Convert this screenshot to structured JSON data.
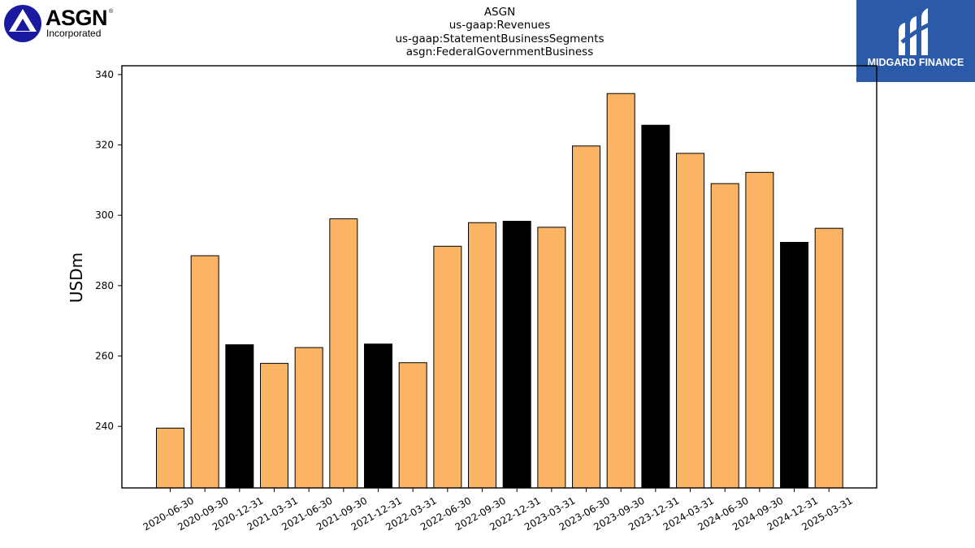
{
  "header": {
    "title_lines": [
      "ASGN",
      "us-gaap:Revenues",
      "us-gaap:StatementBusinessSegments",
      "asgn:FederalGovernmentBusiness"
    ]
  },
  "logos": {
    "left": {
      "name": "ASGN",
      "sub": "Incorporated",
      "mark": "®",
      "color": "#1a1aa0"
    },
    "right": {
      "name": "MIDGARD FINANCE",
      "bg": "#2a5aa8"
    }
  },
  "chart_data": {
    "type": "bar",
    "ylabel": "USDm",
    "xlabel": "",
    "ylim": [
      222.5,
      342.5
    ],
    "yticks": [
      240,
      260,
      280,
      300,
      320,
      340
    ],
    "grid": false,
    "categories": [
      "2020-06-30",
      "2020-09-30",
      "2020-12-31",
      "2021-03-31",
      "2021-06-30",
      "2021-09-30",
      "2021-12-31",
      "2022-03-31",
      "2022-06-30",
      "2022-09-30",
      "2022-12-31",
      "2023-03-31",
      "2023-06-30",
      "2023-09-30",
      "2023-12-31",
      "2024-03-31",
      "2024-06-30",
      "2024-09-30",
      "2024-12-31",
      "2025-03-31"
    ],
    "values": [
      239.5,
      288.5,
      263.2,
      257.9,
      262.4,
      299.0,
      263.4,
      258.1,
      291.2,
      297.9,
      298.3,
      296.6,
      319.7,
      334.6,
      325.6,
      317.6,
      309.0,
      312.2,
      292.3,
      296.3
    ],
    "bar_colors": [
      "#fbb464",
      "#fbb464",
      "#000000",
      "#fbb464",
      "#fbb464",
      "#fbb464",
      "#000000",
      "#fbb464",
      "#fbb464",
      "#fbb464",
      "#000000",
      "#fbb464",
      "#fbb464",
      "#fbb464",
      "#000000",
      "#fbb464",
      "#fbb464",
      "#fbb464",
      "#000000",
      "#fbb464"
    ]
  }
}
